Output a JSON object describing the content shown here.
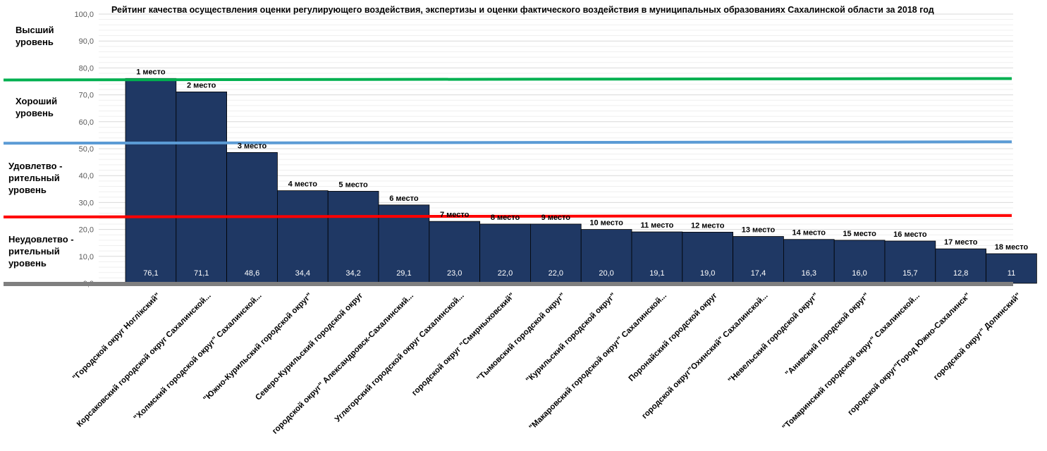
{
  "chart_data": {
    "type": "bar",
    "title": "Рейтинг качества осуществления оценки регулирующего воздействия, экспертизы и оценки фактического воздействия в муниципальных образованиях Сахалинской области за 2018 год",
    "ylim": [
      0,
      100
    ],
    "y_ticks": [
      "0,0",
      "10,0",
      "20,0",
      "30,0",
      "40,0",
      "50,0",
      "60,0",
      "70,0",
      "80,0",
      "90,0",
      "100,0"
    ],
    "grid": true,
    "bar_color": "#1F3864",
    "categories": [
      "\"Городской округ Ноглікский\"",
      "Корсаковский городской округ Сахалинской...",
      "\"Холмский городской округ\" Сахалинской...",
      "\"Южно-Курильский городской округ\"",
      "Северо-Курильский городской округ",
      "городской округ\" Александровск-Сахалинский...",
      "Углегорский городской округ Сахалинской...",
      "городской округ \"Смирныховский\"",
      "\"Тымовский городской округ\"",
      "\"Курильский городской округ\"",
      "\"Макаровский городской округ\" Сахалинской...",
      "Поронайский городской округ",
      "городской округ\"Охинский\" Сахалинской...",
      "\"Невельский городской округ\"",
      "\"Анивский городской округ\"",
      "\"Томаринский городской округ\" Сахалинской...",
      "городской округ\"Город Южно-Сахалинск\"",
      "городской округ\" Долинский\""
    ],
    "values": [
      76.1,
      71.1,
      48.6,
      34.4,
      34.2,
      29.1,
      23.0,
      22.0,
      22.0,
      20.0,
      19.1,
      19.0,
      17.4,
      16.3,
      16.0,
      15.7,
      12.8,
      11.0
    ],
    "value_labels": [
      "76,1",
      "71,1",
      "48,6",
      "34,4",
      "34,2",
      "29,1",
      "23,0",
      "22,0",
      "22,0",
      "20,0",
      "19,1",
      "19,0",
      "17,4",
      "16,3",
      "16,0",
      "15,7",
      "12,8",
      "11"
    ],
    "place_labels": [
      "1 место",
      "2 место",
      "3 место",
      "4 место",
      "5 место",
      "6 место",
      "7 место",
      "8 место",
      "9 место",
      "10 место",
      "11 место",
      "12 место",
      "13 место",
      "14 место",
      "15 место",
      "16 место",
      "17 место",
      "18 место"
    ],
    "threshold_lines": [
      {
        "value": 75.8,
        "color": "#00B050"
      },
      {
        "value": 52.3,
        "color": "#5B9BD5"
      },
      {
        "value": 24.9,
        "color": "#FF0000"
      }
    ],
    "levels": [
      {
        "lines": [
          "Высший",
          "уровень"
        ]
      },
      {
        "lines": [
          "Хороший",
          "уровень"
        ]
      },
      {
        "lines": [
          "Удовлетво -",
          "рительный",
          "уровень"
        ]
      },
      {
        "lines": [
          "Неудовлетво -",
          "рительный",
          "уровень"
        ]
      }
    ]
  }
}
